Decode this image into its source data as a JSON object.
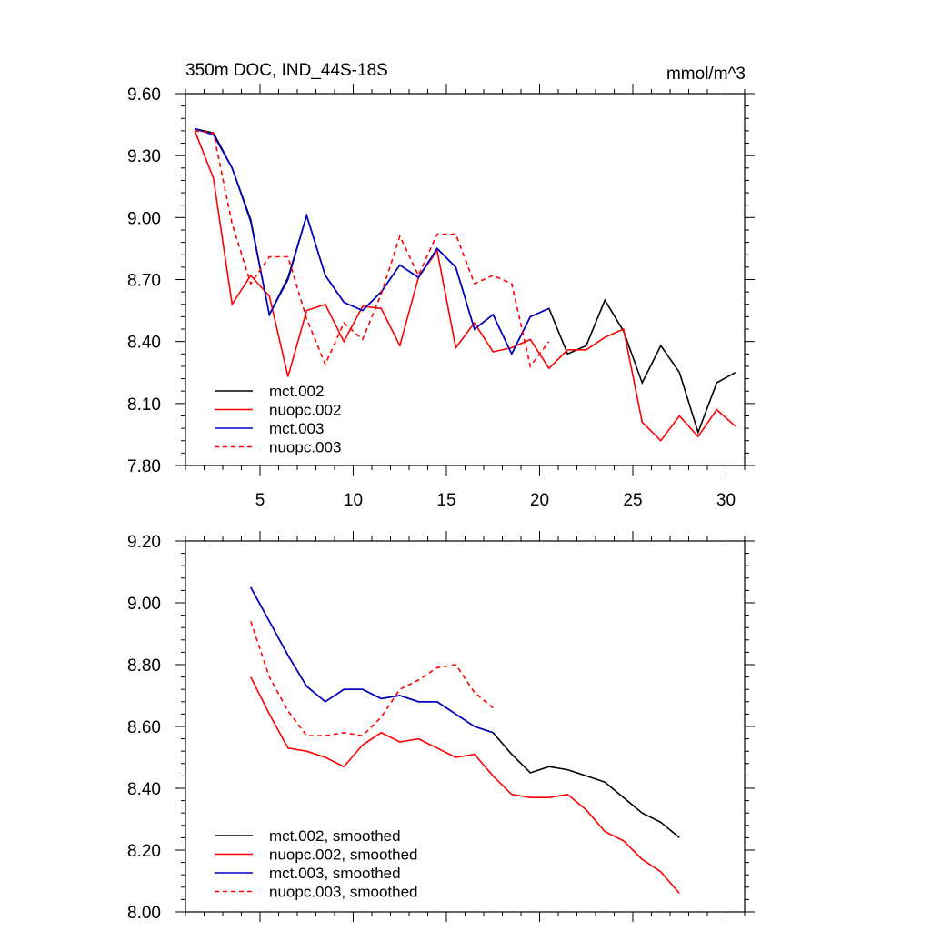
{
  "chart_data": [
    {
      "type": "line",
      "title": "350m DOC, IND_44S-18S",
      "units": "mmol/m^3",
      "xlim": [
        1,
        31
      ],
      "ylim": [
        7.8,
        9.6
      ],
      "xticks": [
        5,
        10,
        15,
        20,
        25,
        30
      ],
      "yticks": [
        7.8,
        8.1,
        8.4,
        8.7,
        9.0,
        9.3,
        9.6
      ],
      "ytick_labels": [
        "7.80",
        "8.10",
        "8.40",
        "8.70",
        "9.00",
        "9.30",
        "9.60"
      ],
      "legend_position": "bottom-left",
      "series": [
        {
          "name": "mct.002",
          "color": "#000000",
          "dash": "solid",
          "x": [
            1.5,
            2.5,
            3.5,
            4.5,
            5.5,
            6.5,
            7.5,
            8.5,
            9.5,
            10.5,
            11.5,
            12.5,
            13.5,
            14.5,
            15.5,
            16.5,
            17.5,
            18.5,
            19.5,
            20.5,
            21.5,
            22.5,
            23.5,
            24.5,
            25.5,
            26.5,
            27.5,
            28.5,
            29.5,
            30.5
          ],
          "y": [
            9.43,
            9.41,
            9.24,
            8.99,
            8.53,
            8.71,
            9.01,
            8.72,
            8.59,
            8.55,
            8.64,
            8.77,
            8.71,
            8.85,
            8.76,
            8.46,
            8.53,
            8.34,
            8.52,
            8.56,
            8.34,
            8.38,
            8.6,
            8.45,
            8.2,
            8.38,
            8.25,
            7.96,
            8.2,
            8.25
          ]
        },
        {
          "name": "nuopc.002",
          "color": "#ff0000",
          "dash": "solid",
          "x": [
            1.5,
            2.5,
            3.5,
            4.5,
            5.5,
            6.5,
            7.5,
            8.5,
            9.5,
            10.5,
            11.5,
            12.5,
            13.5,
            14.5,
            15.5,
            16.5,
            17.5,
            18.5,
            19.5,
            20.5,
            21.5,
            22.5,
            23.5,
            24.5,
            25.5,
            26.5,
            27.5,
            28.5,
            29.5,
            30.5
          ],
          "y": [
            9.42,
            9.19,
            8.58,
            8.72,
            8.62,
            8.23,
            8.55,
            8.58,
            8.4,
            8.57,
            8.56,
            8.38,
            8.71,
            8.84,
            8.37,
            8.49,
            8.35,
            8.37,
            8.41,
            8.27,
            8.36,
            8.36,
            8.42,
            8.46,
            8.01,
            7.92,
            8.04,
            7.94,
            8.07,
            7.99
          ]
        },
        {
          "name": "mct.003",
          "color": "#0000cc",
          "dash": "solid",
          "x": [
            1.5,
            2.5,
            3.5,
            4.5,
            5.5,
            6.5,
            7.5,
            8.5,
            9.5,
            10.5,
            11.5,
            12.5,
            13.5,
            14.5,
            15.5,
            16.5,
            17.5,
            18.5,
            19.5,
            20.5
          ],
          "y": [
            9.43,
            9.4,
            9.24,
            8.98,
            8.53,
            8.7,
            9.01,
            8.72,
            8.59,
            8.55,
            8.64,
            8.77,
            8.71,
            8.85,
            8.76,
            8.46,
            8.53,
            8.34,
            8.52,
            8.56
          ]
        },
        {
          "name": "nuopc.003",
          "color": "#ff0000",
          "dash": "dashed",
          "x": [
            1.5,
            2.5,
            3.5,
            4.5,
            5.5,
            6.5,
            7.5,
            8.5,
            9.5,
            10.5,
            11.5,
            12.5,
            13.5,
            14.5,
            15.5,
            16.5,
            17.5,
            18.5,
            19.5,
            20.5
          ],
          "y": [
            9.42,
            9.41,
            8.97,
            8.68,
            8.81,
            8.81,
            8.51,
            8.29,
            8.49,
            8.41,
            8.63,
            8.91,
            8.72,
            8.92,
            8.92,
            8.68,
            8.72,
            8.68,
            8.28,
            8.4
          ]
        }
      ]
    },
    {
      "type": "line",
      "xlim": [
        1,
        31
      ],
      "ylim": [
        8.0,
        9.2
      ],
      "xticks": [
        5,
        10,
        15,
        20,
        25,
        30
      ],
      "yticks": [
        8.0,
        8.2,
        8.4,
        8.6,
        8.8,
        9.0,
        9.2
      ],
      "ytick_labels": [
        "8.00",
        "8.20",
        "8.40",
        "8.60",
        "8.80",
        "9.00",
        "9.20"
      ],
      "legend_position": "bottom-left",
      "series": [
        {
          "name": "mct.002, smoothed",
          "color": "#000000",
          "dash": "solid",
          "x": [
            4.5,
            5.5,
            6.5,
            7.5,
            8.5,
            9.5,
            10.5,
            11.5,
            12.5,
            13.5,
            14.5,
            15.5,
            16.5,
            17.5,
            18.5,
            19.5,
            20.5,
            21.5,
            22.5,
            23.5,
            24.5,
            25.5,
            26.5,
            27.5
          ],
          "y": [
            9.05,
            8.94,
            8.83,
            8.73,
            8.68,
            8.72,
            8.72,
            8.69,
            8.7,
            8.68,
            8.68,
            8.64,
            8.6,
            8.58,
            8.51,
            8.45,
            8.47,
            8.46,
            8.44,
            8.42,
            8.37,
            8.32,
            8.29,
            8.24
          ]
        },
        {
          "name": "nuopc.002, smoothed",
          "color": "#ff0000",
          "dash": "solid",
          "x": [
            4.5,
            5.5,
            6.5,
            7.5,
            8.5,
            9.5,
            10.5,
            11.5,
            12.5,
            13.5,
            14.5,
            15.5,
            16.5,
            17.5,
            18.5,
            19.5,
            20.5,
            21.5,
            22.5,
            23.5,
            24.5,
            25.5,
            26.5,
            27.5
          ],
          "y": [
            8.76,
            8.64,
            8.53,
            8.52,
            8.5,
            8.47,
            8.54,
            8.58,
            8.55,
            8.56,
            8.53,
            8.5,
            8.51,
            8.44,
            8.38,
            8.37,
            8.37,
            8.38,
            8.33,
            8.26,
            8.23,
            8.17,
            8.13,
            8.06
          ]
        },
        {
          "name": "mct.003, smoothed",
          "color": "#0000cc",
          "dash": "solid",
          "x": [
            4.5,
            5.5,
            6.5,
            7.5,
            8.5,
            9.5,
            10.5,
            11.5,
            12.5,
            13.5,
            14.5,
            15.5,
            16.5,
            17.5
          ],
          "y": [
            9.05,
            8.94,
            8.83,
            8.73,
            8.68,
            8.72,
            8.72,
            8.69,
            8.7,
            8.68,
            8.68,
            8.64,
            8.6,
            8.58
          ]
        },
        {
          "name": "nuopc.003, smoothed",
          "color": "#ff0000",
          "dash": "dashed",
          "x": [
            4.5,
            5.5,
            6.5,
            7.5,
            8.5,
            9.5,
            10.5,
            11.5,
            12.5,
            13.5,
            14.5,
            15.5,
            16.5,
            17.5
          ],
          "y": [
            8.94,
            8.76,
            8.65,
            8.57,
            8.57,
            8.58,
            8.57,
            8.63,
            8.72,
            8.75,
            8.79,
            8.8,
            8.71,
            8.66
          ]
        }
      ]
    }
  ]
}
